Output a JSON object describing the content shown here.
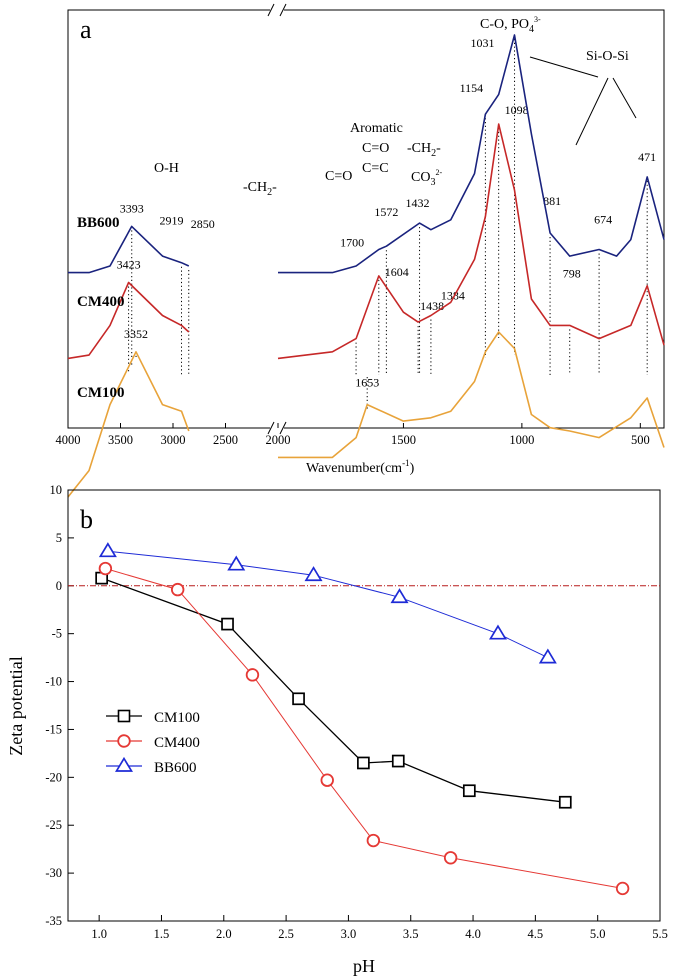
{
  "chart_data": [
    {
      "panel": "a",
      "type": "line",
      "xlabel": "Wavenumber(cm",
      "xlabel_sup": "-1",
      "xlabel_end": ")",
      "x_axis": {
        "left_segment": {
          "range": [
            4000,
            2000
          ],
          "ticks": [
            4000,
            3500,
            3000,
            2500,
            2000
          ]
        },
        "right_segment": {
          "range": [
            2000,
            400
          ],
          "ticks": [
            1500,
            1000,
            500
          ]
        },
        "break": "between 2850 and 2000"
      },
      "series": [
        {
          "name": "BB600",
          "color": "#1a237e",
          "points": [
            [
              4000,
              0.28
            ],
            [
              3800,
              0.28
            ],
            [
              3600,
              0.3
            ],
            [
              3393,
              0.42
            ],
            [
              3100,
              0.33
            ],
            [
              2919,
              0.31
            ],
            [
              2850,
              0.3
            ],
            [
              2000,
              0.28
            ],
            [
              1800,
              0.28
            ],
            [
              1700,
              0.3
            ],
            [
              1604,
              0.35
            ],
            [
              1572,
              0.36
            ],
            [
              1432,
              0.43
            ],
            [
              1384,
              0.41
            ],
            [
              1300,
              0.44
            ],
            [
              1200,
              0.58
            ],
            [
              1154,
              0.76
            ],
            [
              1098,
              0.82
            ],
            [
              1031,
              1.0
            ],
            [
              960,
              0.7
            ],
            [
              881,
              0.4
            ],
            [
              798,
              0.33
            ],
            [
              674,
              0.35
            ],
            [
              600,
              0.33
            ],
            [
              540,
              0.38
            ],
            [
              471,
              0.57
            ],
            [
              400,
              0.38
            ]
          ]
        },
        {
          "name": "CM400",
          "color": "#c62828",
          "points": [
            [
              4000,
              0.02
            ],
            [
              3800,
              0.03
            ],
            [
              3600,
              0.12
            ],
            [
              3423,
              0.25
            ],
            [
              3100,
              0.15
            ],
            [
              2919,
              0.12
            ],
            [
              2850,
              0.1
            ],
            [
              2000,
              0.02
            ],
            [
              1800,
              0.04
            ],
            [
              1700,
              0.08
            ],
            [
              1604,
              0.27
            ],
            [
              1500,
              0.16
            ],
            [
              1438,
              0.13
            ],
            [
              1384,
              0.15
            ],
            [
              1300,
              0.19
            ],
            [
              1200,
              0.32
            ],
            [
              1154,
              0.45
            ],
            [
              1098,
              0.73
            ],
            [
              1031,
              0.53
            ],
            [
              960,
              0.2
            ],
            [
              881,
              0.12
            ],
            [
              798,
              0.12
            ],
            [
              674,
              0.08
            ],
            [
              540,
              0.12
            ],
            [
              471,
              0.24
            ],
            [
              400,
              0.06
            ]
          ]
        },
        {
          "name": "CM100",
          "color": "#e8a33a",
          "points": [
            [
              4000,
              -0.4
            ],
            [
              3800,
              -0.32
            ],
            [
              3600,
              -0.12
            ],
            [
              3352,
              0.04
            ],
            [
              3100,
              -0.12
            ],
            [
              2919,
              -0.14
            ],
            [
              2850,
              -0.2
            ],
            [
              2000,
              -0.28
            ],
            [
              1800,
              -0.28
            ],
            [
              1700,
              -0.22
            ],
            [
              1653,
              -0.12
            ],
            [
              1500,
              -0.17
            ],
            [
              1384,
              -0.16
            ],
            [
              1300,
              -0.14
            ],
            [
              1200,
              -0.05
            ],
            [
              1154,
              0.04
            ],
            [
              1098,
              0.1
            ],
            [
              1031,
              0.05
            ],
            [
              960,
              -0.15
            ],
            [
              881,
              -0.19
            ],
            [
              798,
              -0.2
            ],
            [
              674,
              -0.22
            ],
            [
              540,
              -0.16
            ],
            [
              471,
              -0.1
            ],
            [
              400,
              -0.25
            ]
          ]
        }
      ],
      "series_labels": [
        "BB600",
        "CM400",
        "CM100"
      ],
      "annotations": {
        "oh": "O-H",
        "ch2_left": "-CH",
        "ch2_left_sub": "2",
        "ch2_left_end": "-",
        "co": "C=O",
        "aromatic": "Aromatic",
        "aromatic_co": "C=O",
        "aromatic_cc": "C=C",
        "ch2_right": "-CH",
        "ch2_right_sub": "2",
        "ch2_right_end": "-",
        "co3": "CO",
        "co3_sub": "3",
        "co3_sup": "2-",
        "cop": "C-O, PO",
        "cop_sub": "4",
        "cop_sup": "3-",
        "siosi": "Si-O-Si"
      },
      "peak_labels": [
        "3393",
        "3423",
        "3352",
        "2919",
        "2850",
        "1700",
        "1604",
        "1572",
        "1653",
        "1438",
        "1432",
        "1384",
        "1154",
        "1098",
        "1031",
        "881",
        "798",
        "674",
        "471"
      ]
    },
    {
      "panel": "b",
      "type": "line",
      "xlabel": "pH",
      "ylabel": "Zeta potential",
      "xlim": [
        0.75,
        5.5
      ],
      "ylim": [
        -35,
        10
      ],
      "x_ticks": [
        1.0,
        1.5,
        2.0,
        2.5,
        3.0,
        3.5,
        4.0,
        4.5,
        5.0,
        5.5
      ],
      "y_ticks": [
        10,
        5,
        0,
        -5,
        -10,
        -15,
        -20,
        -25,
        -30,
        -35
      ],
      "legend_position": "left",
      "series": [
        {
          "name": "CM100",
          "color": "#000000",
          "marker": "square",
          "x": [
            1.02,
            2.03,
            2.6,
            3.12,
            3.4,
            3.97,
            4.74
          ],
          "y": [
            0.8,
            -4.0,
            -11.8,
            -18.5,
            -18.3,
            -21.4,
            -22.6
          ]
        },
        {
          "name": "CM400",
          "color": "#e53935",
          "marker": "circle",
          "x": [
            1.05,
            1.63,
            2.23,
            2.83,
            3.2,
            3.82,
            5.2
          ],
          "y": [
            1.8,
            -0.4,
            -9.3,
            -20.3,
            -26.6,
            -28.4,
            -31.6
          ]
        },
        {
          "name": "BB600",
          "color": "#1e2bd6",
          "marker": "triangle",
          "x": [
            1.07,
            2.1,
            2.72,
            3.41,
            4.2,
            4.6
          ],
          "y": [
            3.6,
            2.2,
            1.1,
            -1.2,
            -5.0,
            -7.5
          ]
        }
      ],
      "reference_line": {
        "y": 0,
        "color": "#b71c1c"
      }
    }
  ],
  "panels": {
    "a": "a",
    "b": "b"
  }
}
